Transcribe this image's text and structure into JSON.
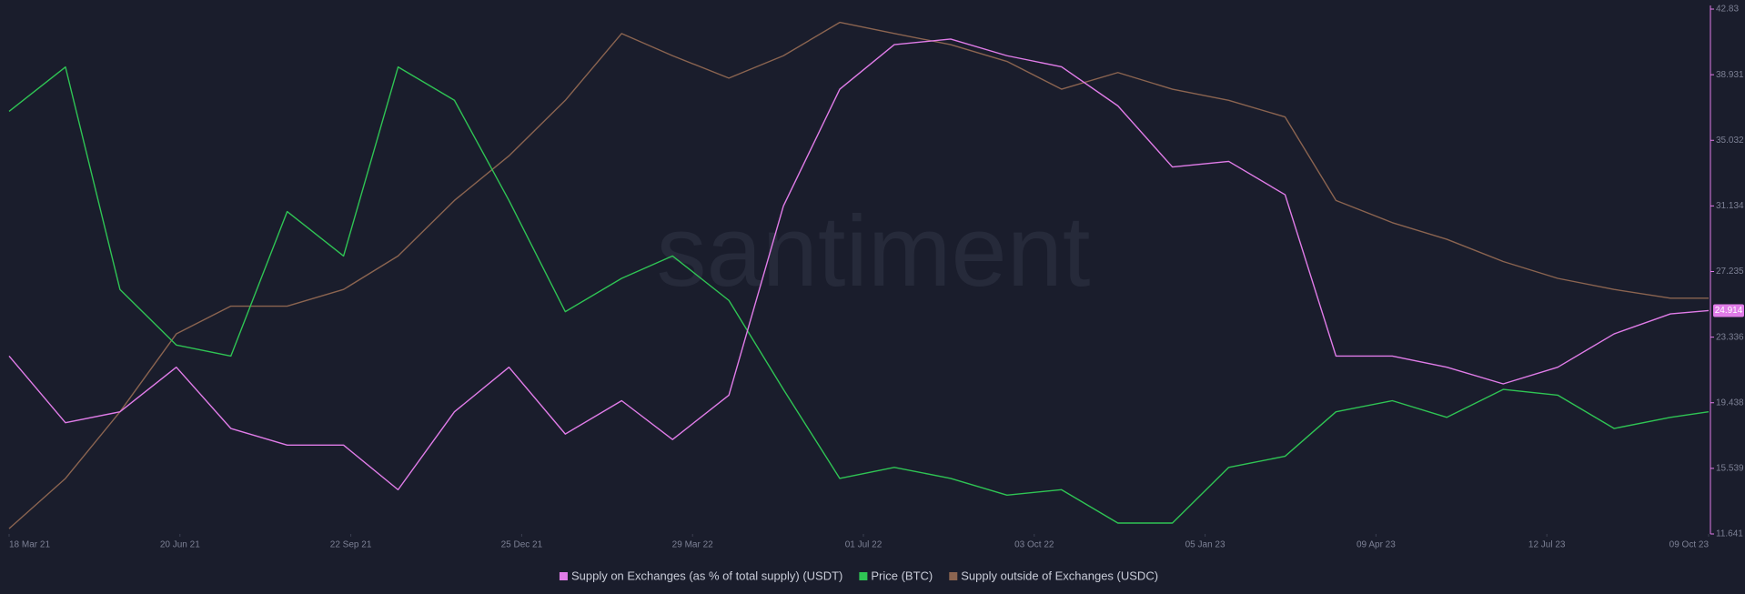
{
  "chart_data": {
    "type": "line",
    "watermark": "santiment",
    "x": [
      "2021-03-18",
      "2021-04-18",
      "2021-05-18",
      "2021-06-18",
      "2021-07-18",
      "2021-08-18",
      "2021-09-18",
      "2021-10-18",
      "2021-11-18",
      "2021-12-18",
      "2022-01-18",
      "2022-02-18",
      "2022-03-18",
      "2022-04-18",
      "2022-05-18",
      "2022-06-18",
      "2022-07-18",
      "2022-08-18",
      "2022-09-18",
      "2022-10-18",
      "2022-11-18",
      "2022-12-18",
      "2023-01-18",
      "2023-02-18",
      "2023-03-18",
      "2023-04-18",
      "2023-05-18",
      "2023-06-18",
      "2023-07-18",
      "2023-08-18",
      "2023-09-18",
      "2023-10-09"
    ],
    "series": [
      {
        "name": "Supply on Exchanges (as % of total supply) (USDT)",
        "color": "#e07ce8",
        "values": [
          22.21,
          18.25,
          18.9,
          21.55,
          17.91,
          16.92,
          16.92,
          14.27,
          18.9,
          21.55,
          17.58,
          19.56,
          17.25,
          19.89,
          31.13,
          38.07,
          40.72,
          41.05,
          40.06,
          39.4,
          37.08,
          33.45,
          33.78,
          31.8,
          22.21,
          22.21,
          21.55,
          20.56,
          21.55,
          23.53,
          24.72,
          24.914
        ]
      },
      {
        "name": "Price (BTC)",
        "color": "#2fc454",
        "values": [
          36.75,
          39.39,
          26.17,
          22.87,
          22.21,
          30.8,
          28.16,
          39.39,
          37.41,
          31.46,
          24.85,
          26.83,
          28.16,
          25.52,
          20.23,
          14.94,
          15.6,
          14.94,
          13.95,
          14.27,
          12.29,
          12.29,
          15.6,
          16.26,
          18.9,
          19.56,
          18.57,
          20.23,
          19.89,
          17.91,
          18.57,
          18.9
        ]
      },
      {
        "name": "Supply outside of Exchanges (USDC)",
        "color": "#8b6450",
        "values": [
          11.96,
          14.94,
          18.9,
          23.53,
          25.18,
          25.18,
          26.17,
          28.16,
          31.46,
          34.11,
          37.41,
          41.38,
          40.06,
          38.73,
          40.06,
          42.04,
          41.38,
          40.72,
          39.72,
          38.07,
          39.06,
          38.07,
          37.41,
          36.42,
          31.46,
          30.14,
          29.15,
          27.83,
          26.83,
          26.17,
          25.65,
          25.65
        ]
      }
    ],
    "current_value": 24.914,
    "xlim": [
      "2021-03-18",
      "2023-10-09"
    ],
    "xticks": [
      {
        "value": "2021-03-18",
        "label": "18 Mar 21"
      },
      {
        "value": "2021-06-20",
        "label": "20 Jun 21"
      },
      {
        "value": "2021-09-22",
        "label": "22 Sep 21"
      },
      {
        "value": "2021-12-25",
        "label": "25 Dec 21"
      },
      {
        "value": "2022-03-29",
        "label": "29 Mar 22"
      },
      {
        "value": "2022-07-01",
        "label": "01 Jul 22"
      },
      {
        "value": "2022-10-03",
        "label": "03 Oct 22"
      },
      {
        "value": "2023-01-05",
        "label": "05 Jan 23"
      },
      {
        "value": "2023-04-09",
        "label": "09 Apr 23"
      },
      {
        "value": "2023-07-12",
        "label": "12 Jul 23"
      },
      {
        "value": "2023-10-09",
        "label": "09 Oct 23"
      }
    ],
    "ylim": [
      11.641,
      42.83
    ],
    "yticks": [
      11.641,
      15.539,
      19.438,
      23.336,
      27.235,
      31.134,
      35.032,
      38.931,
      42.83
    ],
    "axis_color": "#e07ce8",
    "grid": false
  }
}
